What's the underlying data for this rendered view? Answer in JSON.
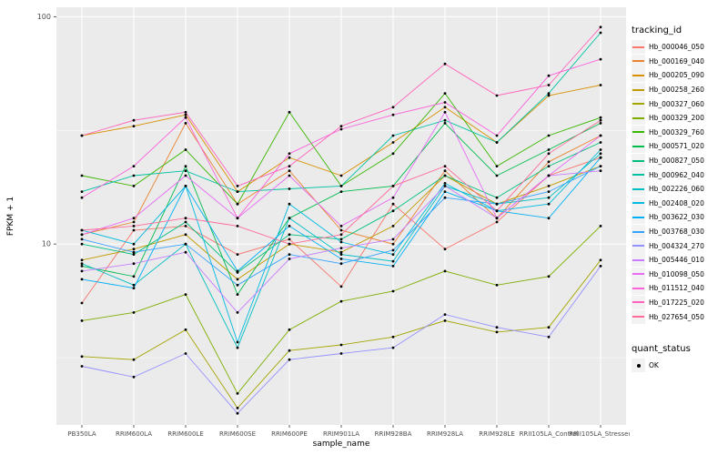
{
  "chart_data": {
    "type": "line",
    "title": "",
    "xlabel": "sample_name",
    "ylabel": "FPKM + 1",
    "y_scale": "log10",
    "y_ticks": [
      10,
      100
    ],
    "y_tick_labels": [
      "10",
      "100"
    ],
    "y_minor_ticks": [
      3.162,
      31.62
    ],
    "ylim": [
      1.6,
      110
    ],
    "grid": true,
    "panel_bg": "#EBEBEB",
    "grid_color": "#FFFFFF",
    "point_color": "#000000",
    "tick_label_color": "#4D4D4D",
    "legend_position": "right",
    "categories": [
      "PB350LA",
      "RRIM600LA",
      "RRIM600LE",
      "RRIM600SE",
      "RRIM600PE",
      "RRIM901LA",
      "RRIM928BA",
      "RRIM928LA",
      "RRIM928LE",
      "RRII105LA_Control",
      "RRII105LA_Stressed"
    ],
    "series": [
      {
        "name": "Hb_000046_050",
        "color": "#F8766D",
        "values": [
          5.5,
          11.5,
          12,
          9,
          10.5,
          6.5,
          15,
          9.5,
          12.5,
          20,
          24
        ]
      },
      {
        "name": "Hb_000169_040",
        "color": "#EA8331",
        "values": [
          11,
          12.5,
          34,
          15,
          21,
          11.5,
          10,
          21,
          13,
          23,
          30
        ]
      },
      {
        "name": "Hb_000205_090",
        "color": "#D89000",
        "values": [
          30,
          33,
          37,
          17,
          24,
          20,
          28,
          40,
          28,
          45,
          50
        ]
      },
      {
        "name": "Hb_000258_260",
        "color": "#C09B00",
        "values": [
          8.5,
          9.5,
          11,
          7,
          10,
          9.2,
          12,
          20,
          15,
          18,
          22
        ]
      },
      {
        "name": "Hb_000327_060",
        "color": "#A3A500",
        "values": [
          3.2,
          3.1,
          4.2,
          1.9,
          3.4,
          3.6,
          3.9,
          4.6,
          4.1,
          4.3,
          8.5
        ]
      },
      {
        "name": "Hb_000329_200",
        "color": "#7CAE00",
        "values": [
          4.6,
          5,
          6,
          2.2,
          4.2,
          5.6,
          6.2,
          7.6,
          6.6,
          7.2,
          12
        ]
      },
      {
        "name": "Hb_000329_760",
        "color": "#39B600",
        "values": [
          20,
          18,
          26,
          15,
          38,
          18,
          25,
          46,
          22,
          30,
          36
        ]
      },
      {
        "name": "Hb_000571_020",
        "color": "#00BB4E",
        "values": [
          8,
          7.2,
          22,
          6,
          13,
          17,
          18,
          34,
          20,
          26,
          34
        ]
      },
      {
        "name": "Hb_000827_050",
        "color": "#00BF7D",
        "values": [
          10,
          9,
          12.5,
          7.5,
          11,
          10.5,
          14,
          20,
          16,
          22,
          28
        ]
      },
      {
        "name": "Hb_000962_040",
        "color": "#00C1A3",
        "values": [
          17,
          20,
          21,
          17,
          17.5,
          18,
          30,
          35,
          28,
          46,
          85
        ]
      },
      {
        "name": "Hb_002226_060",
        "color": "#00BFC4",
        "values": [
          8.2,
          6.6,
          10,
          3.5,
          13,
          9,
          8.4,
          18,
          15,
          16,
          25
        ]
      },
      {
        "name": "Hb_002408_020",
        "color": "#00BAE0",
        "values": [
          11.5,
          10,
          18,
          3.7,
          15,
          10.2,
          9,
          18.5,
          14,
          15,
          26
        ]
      },
      {
        "name": "Hb_003622_030",
        "color": "#00B0F6",
        "values": [
          7,
          6.4,
          18,
          7.6,
          12,
          8.6,
          8,
          17,
          14,
          13,
          24
        ]
      },
      {
        "name": "Hb_003768_030",
        "color": "#35A2FF",
        "values": [
          10.5,
          9.2,
          10,
          6.6,
          9,
          8.2,
          9.4,
          16,
          15,
          17,
          22
        ]
      },
      {
        "name": "Hb_004324_270",
        "color": "#9590FF",
        "values": [
          2.9,
          2.6,
          3.3,
          1.8,
          3.1,
          3.3,
          3.5,
          4.9,
          4.3,
          3.9,
          8
        ]
      },
      {
        "name": "Hb_005446_010",
        "color": "#C77CFF",
        "values": [
          7.6,
          8.2,
          9.2,
          5,
          8.6,
          9.6,
          10.5,
          18,
          13,
          20,
          21
        ]
      },
      {
        "name": "Hb_010098_050",
        "color": "#E76BF3",
        "values": [
          11,
          13,
          20,
          13,
          20,
          12,
          16,
          38,
          13,
          20,
          30
        ]
      },
      {
        "name": "Hb_011512_040",
        "color": "#FA62DB",
        "values": [
          16,
          22,
          36,
          13,
          25,
          32,
          37,
          42,
          30,
          55,
          65
        ]
      },
      {
        "name": "Hb_017225_020",
        "color": "#FF62BC",
        "values": [
          30,
          35,
          38,
          18,
          22,
          33,
          40,
          62,
          45,
          50,
          90
        ]
      },
      {
        "name": "Hb_027654_050",
        "color": "#FF6A98",
        "values": [
          11.5,
          12,
          13,
          12,
          10,
          11,
          18,
          22,
          14,
          25,
          35
        ]
      }
    ],
    "legend": {
      "tracking_title": "tracking_id",
      "quant_title": "quant_status",
      "quant_items": [
        "OK"
      ]
    }
  }
}
